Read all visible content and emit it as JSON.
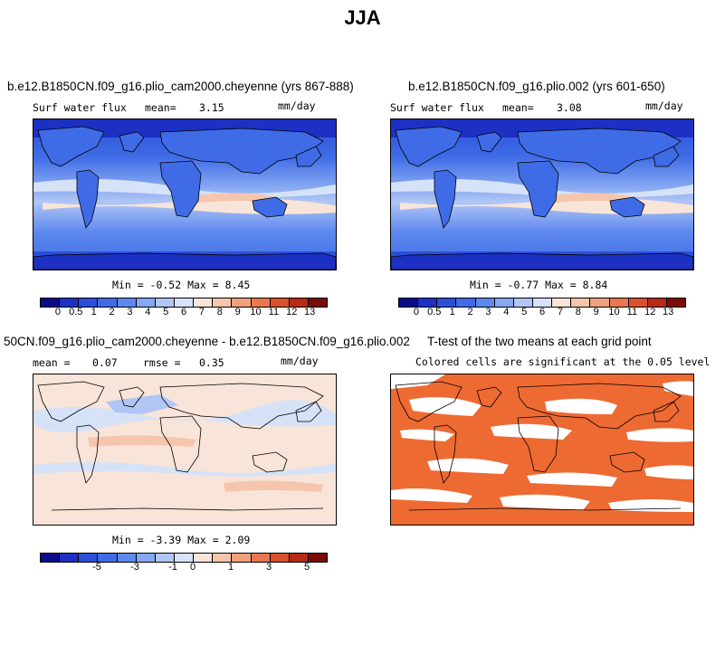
{
  "title": "JJA",
  "panels": [
    {
      "id": "top-left",
      "title": "b.e12.B1850CN.f09_g16.plio_cam2000.cheyenne (yrs 867-888)",
      "variable": "Surf water flux",
      "mean_label": "mean=",
      "mean": "3.15",
      "units": "mm/day",
      "minmax": "Min =  -0.52 Max =   8.45"
    },
    {
      "id": "top-right",
      "title": "b.e12.B1850CN.f09_g16.plio.002 (yrs 601-650)",
      "variable": "Surf water flux",
      "mean_label": "mean=",
      "mean": "3.08",
      "units": "mm/day",
      "minmax": "Min =  -0.77 Max =   8.84"
    },
    {
      "id": "bottom-left",
      "title": "50CN.f09_g16.plio_cam2000.cheyenne - b.e12.B1850CN.f09_g16.plio.002",
      "mean_label": "mean =",
      "mean": "0.07",
      "rmse_label": "rmse =",
      "rmse": "0.35",
      "units": "mm/day",
      "minmax": "Min =  -3.39 Max =   2.09"
    },
    {
      "id": "bottom-right",
      "title": "T-test of the two means at each grid point",
      "subtitle": "Colored cells are significant at the 0.05 level"
    }
  ],
  "colorbars": {
    "abs": {
      "labels": [
        "0",
        "0.5",
        "1",
        "2",
        "3",
        "4",
        "5",
        "6",
        "7",
        "8",
        "9",
        "10",
        "11",
        "12",
        "13"
      ],
      "colors": [
        "#0b0c8a",
        "#1c30c4",
        "#2b4fd9",
        "#3f6ce6",
        "#5d88ee",
        "#86a8f2",
        "#b1c6f5",
        "#d6e2f8",
        "#f8e4d8",
        "#f5c6ad",
        "#f0a07c",
        "#e9774f",
        "#d9502c",
        "#b82a15",
        "#7a0b06"
      ]
    },
    "diff": {
      "labels": [
        "-5",
        "-3",
        "-1",
        "0",
        "1",
        "3",
        "5"
      ],
      "colors": [
        "#0b0c8a",
        "#1c30c4",
        "#2b4fd9",
        "#3f6ce6",
        "#5d88ee",
        "#86a8f2",
        "#b1c6f5",
        "#d6e2f8",
        "#f8e4d8",
        "#f5c6ad",
        "#f0a07c",
        "#e9774f",
        "#d9502c",
        "#b82a15",
        "#7a0b06"
      ]
    }
  },
  "chart_data": [
    {
      "type": "heatmap",
      "title": "Surf water flux",
      "units": "mm/day",
      "mean": 3.15,
      "min": -0.52,
      "max": 8.45,
      "levels": [
        0,
        0.5,
        1,
        2,
        3,
        4,
        5,
        6,
        7,
        8,
        9,
        10,
        11,
        12,
        13
      ]
    },
    {
      "type": "heatmap",
      "title": "Surf water flux",
      "units": "mm/day",
      "mean": 3.08,
      "min": -0.77,
      "max": 8.84,
      "levels": [
        0,
        0.5,
        1,
        2,
        3,
        4,
        5,
        6,
        7,
        8,
        9,
        10,
        11,
        12,
        13
      ]
    },
    {
      "type": "heatmap",
      "units": "mm/day",
      "mean": 0.07,
      "rmse": 0.35,
      "min": -3.39,
      "max": 2.09,
      "levels": [
        -5,
        -3,
        -1,
        0,
        1,
        3,
        5
      ]
    },
    {
      "type": "heatmap",
      "title": "T-test of the two means at each grid point",
      "note": "Colored cells are significant at the 0.05 level",
      "significant_color": "#ee6a33"
    }
  ]
}
